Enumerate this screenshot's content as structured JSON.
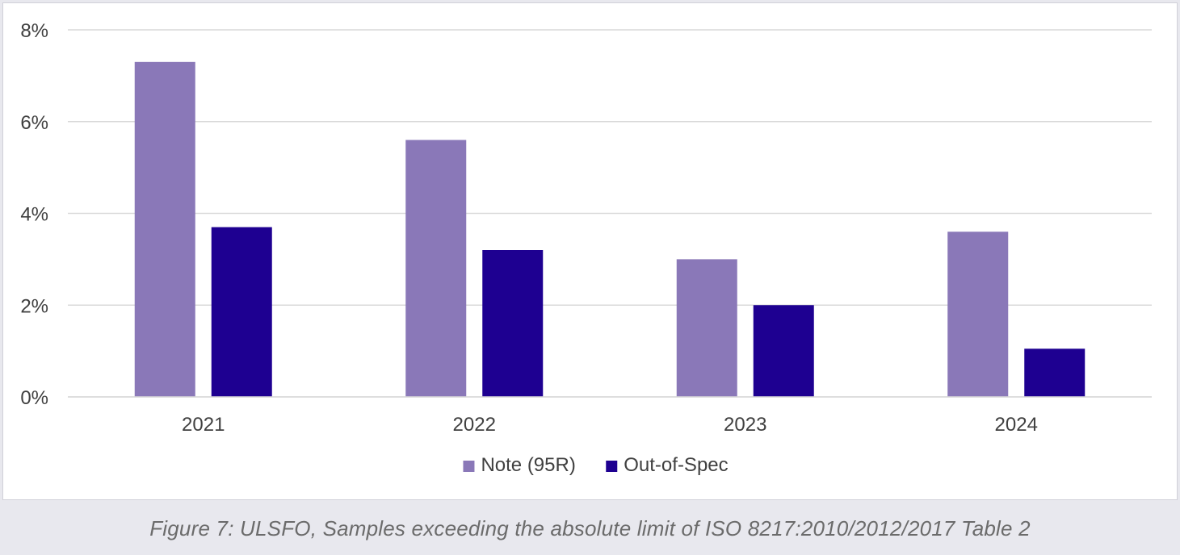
{
  "caption": "Figure 7: ULSFO, Samples exceeding the absolute limit of ISO 8217:2010/2012/2017 Table 2",
  "chart_data": {
    "type": "bar",
    "categories": [
      "2021",
      "2022",
      "2023",
      "2024"
    ],
    "series": [
      {
        "name": "Note (95R)",
        "color": "#8a78b8",
        "values": [
          7.3,
          5.6,
          3.0,
          3.6
        ]
      },
      {
        "name": "Out-of-Spec",
        "color": "#1e0091",
        "values": [
          3.7,
          3.2,
          2.0,
          1.05
        ]
      }
    ],
    "ylim": [
      0,
      8
    ],
    "yticks": [
      0,
      2,
      4,
      6,
      8
    ],
    "ytick_labels": [
      "0%",
      "2%",
      "4%",
      "6%",
      "8%"
    ],
    "grid": true,
    "legend": "bottom-center",
    "title": "",
    "xlabel": "",
    "ylabel": ""
  }
}
